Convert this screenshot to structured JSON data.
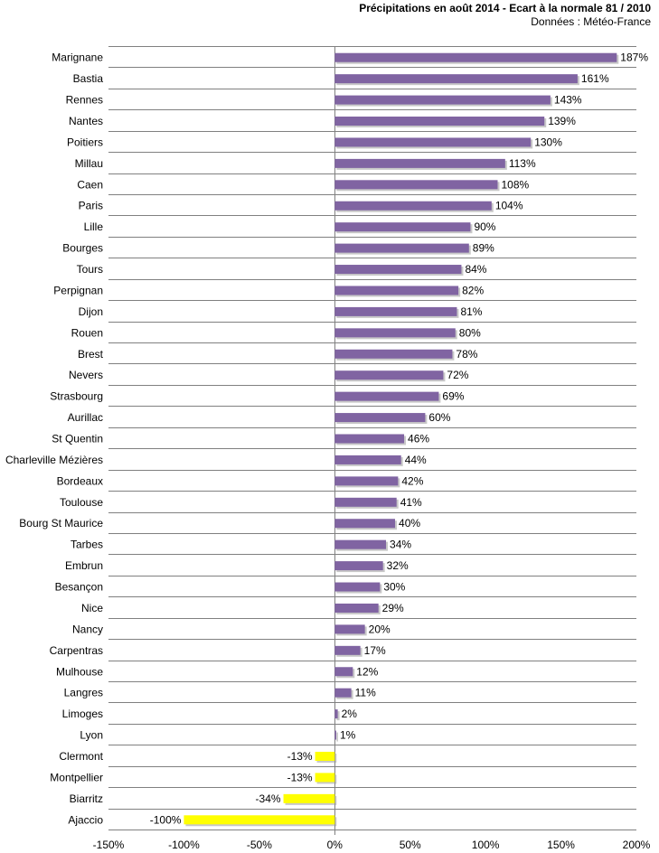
{
  "chart_data": {
    "type": "bar",
    "orientation": "horizontal",
    "title": "Précipitations en août 2014 - Ecart à la normale 81 / 2010",
    "subtitle": "Données : Météo-France",
    "xlabel": "",
    "ylabel": "",
    "xlim": [
      -150,
      200
    ],
    "x_ticks": [
      -150,
      -100,
      -50,
      0,
      50,
      100,
      150,
      200
    ],
    "x_tick_labels": [
      "-150%",
      "-100%",
      "-50%",
      "0%",
      "50%",
      "100%",
      "150%",
      "200%"
    ],
    "grid": "horizontal lines between categories",
    "legend": "none",
    "unit": "%",
    "colors": {
      "positive": "#8064A2",
      "negative": "#FFFF00",
      "grid": "#808080",
      "shadow": "#9a9a9a"
    },
    "categories": [
      "Marignane",
      "Bastia",
      "Rennes",
      "Nantes",
      "Poitiers",
      "Millau",
      "Caen",
      "Paris",
      "Lille",
      "Bourges",
      "Tours",
      "Perpignan",
      "Dijon",
      "Rouen",
      "Brest",
      "Nevers",
      "Strasbourg",
      "Aurillac",
      "St Quentin",
      "Charleville Mézières",
      "Bordeaux",
      "Toulouse",
      "Bourg St Maurice",
      "Tarbes",
      "Embrun",
      "Besançon",
      "Nice",
      "Nancy",
      "Carpentras",
      "Mulhouse",
      "Langres",
      "Limoges",
      "Lyon",
      "Clermont",
      "Montpellier",
      "Biarritz",
      "Ajaccio"
    ],
    "values": [
      187,
      161,
      143,
      139,
      130,
      113,
      108,
      104,
      90,
      89,
      84,
      82,
      81,
      80,
      78,
      72,
      69,
      60,
      46,
      44,
      42,
      41,
      40,
      34,
      32,
      30,
      29,
      20,
      17,
      12,
      11,
      2,
      1,
      -13,
      -13,
      -34,
      -100
    ],
    "data_labels": [
      "187%",
      "161%",
      "143%",
      "139%",
      "130%",
      "113%",
      "108%",
      "104%",
      "90%",
      "89%",
      "84%",
      "82%",
      "81%",
      "80%",
      "78%",
      "72%",
      "69%",
      "60%",
      "46%",
      "44%",
      "42%",
      "41%",
      "40%",
      "34%",
      "32%",
      "30%",
      "29%",
      "20%",
      "17%",
      "12%",
      "11%",
      "2%",
      "1%",
      "-13%",
      "-13%",
      "-34%",
      "-100%"
    ]
  }
}
